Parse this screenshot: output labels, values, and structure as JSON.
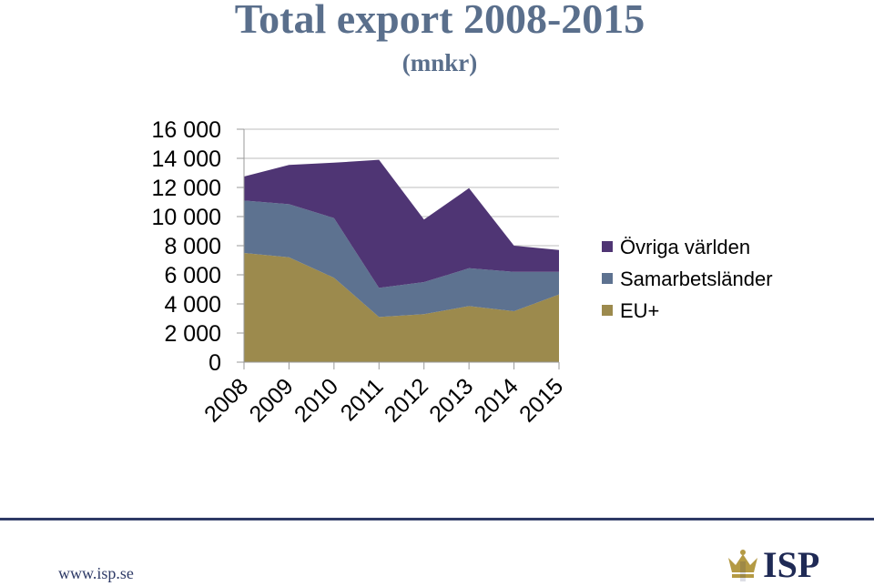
{
  "chart_data": {
    "type": "area",
    "stacked": true,
    "title": "Total export 2008-2015",
    "subtitle": "(mnkr)",
    "categories": [
      "2008",
      "2009",
      "2010",
      "2011",
      "2012",
      "2013",
      "2014",
      "2015"
    ],
    "series": [
      {
        "name": "EU+",
        "color": "#9c8a4d",
        "values": [
          7500,
          7200,
          5800,
          3100,
          3300,
          3850,
          3500,
          4650
        ]
      },
      {
        "name": "Samarbetsländer",
        "color": "#5d7290",
        "values": [
          3600,
          3650,
          4100,
          2000,
          2200,
          2600,
          2700,
          1550
        ]
      },
      {
        "name": "Övriga världen",
        "color": "#4f3574",
        "values": [
          1650,
          2700,
          3800,
          8800,
          4300,
          5500,
          1800,
          1500
        ]
      }
    ],
    "ylim": [
      0,
      16000
    ],
    "yticks": [
      "16 000",
      "14 000",
      "12 000",
      "10 000",
      "8 000",
      "6 000",
      "4 000",
      "2 000",
      "0"
    ],
    "grid": true,
    "legend_position": "right"
  },
  "footer": {
    "url": "www.isp.se",
    "logo_text": "ISP"
  }
}
